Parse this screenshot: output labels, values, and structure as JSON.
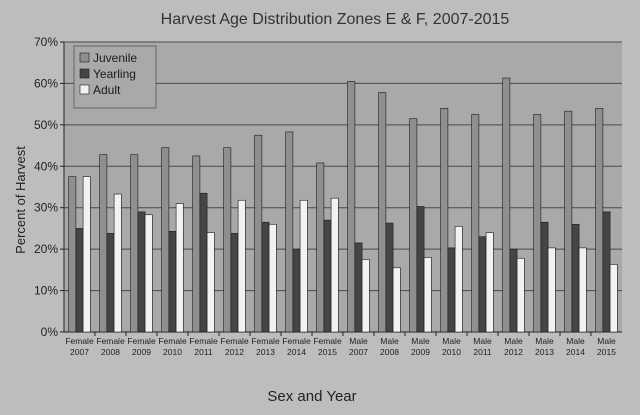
{
  "chart_data": {
    "type": "bar",
    "title": "Harvest Age Distribution Zones E & F, 2007-2015",
    "xlabel": "Sex and Year",
    "ylabel": "Percent of Harvest",
    "ylim": [
      0,
      70
    ],
    "yticks": [
      "0%",
      "10%",
      "20%",
      "30%",
      "40%",
      "50%",
      "60%",
      "70%"
    ],
    "grid": true,
    "legend_position": "top-left",
    "categories": [
      {
        "sex": "Female",
        "year": "2007"
      },
      {
        "sex": "Female",
        "year": "2008"
      },
      {
        "sex": "Female",
        "year": "2009"
      },
      {
        "sex": "Female",
        "year": "2010"
      },
      {
        "sex": "Female",
        "year": "2011"
      },
      {
        "sex": "Female",
        "year": "2012"
      },
      {
        "sex": "Female",
        "year": "2013"
      },
      {
        "sex": "Female",
        "year": "2014"
      },
      {
        "sex": "Female",
        "year": "2015"
      },
      {
        "sex": "Male",
        "year": "2007"
      },
      {
        "sex": "Male",
        "year": "2008"
      },
      {
        "sex": "Male",
        "year": "2009"
      },
      {
        "sex": "Male",
        "year": "2010"
      },
      {
        "sex": "Male",
        "year": "2011"
      },
      {
        "sex": "Male",
        "year": "2012"
      },
      {
        "sex": "Male",
        "year": "2013"
      },
      {
        "sex": "Male",
        "year": "2014"
      },
      {
        "sex": "Male",
        "year": "2015"
      }
    ],
    "series": [
      {
        "name": "Juvenile",
        "color": "#8f8f8f",
        "values": [
          37.5,
          42.8,
          42.8,
          44.5,
          42.5,
          44.5,
          47.5,
          48.3,
          40.8,
          60.5,
          57.8,
          51.5,
          54.0,
          52.5,
          61.3,
          52.5,
          53.3,
          54.0
        ]
      },
      {
        "name": "Yearling",
        "color": "#454545",
        "values": [
          25.0,
          23.8,
          29.0,
          24.3,
          33.5,
          23.8,
          26.5,
          20.0,
          27.0,
          21.5,
          26.3,
          30.3,
          20.3,
          23.0,
          20.0,
          26.5,
          26.0,
          29.0
        ]
      },
      {
        "name": "Adult",
        "color": "#f2f2f2",
        "values": [
          37.5,
          33.3,
          28.3,
          31.0,
          24.0,
          31.8,
          26.0,
          31.8,
          32.3,
          17.5,
          15.5,
          18.0,
          25.5,
          24.0,
          17.8,
          20.3,
          20.3,
          16.3
        ]
      }
    ]
  }
}
